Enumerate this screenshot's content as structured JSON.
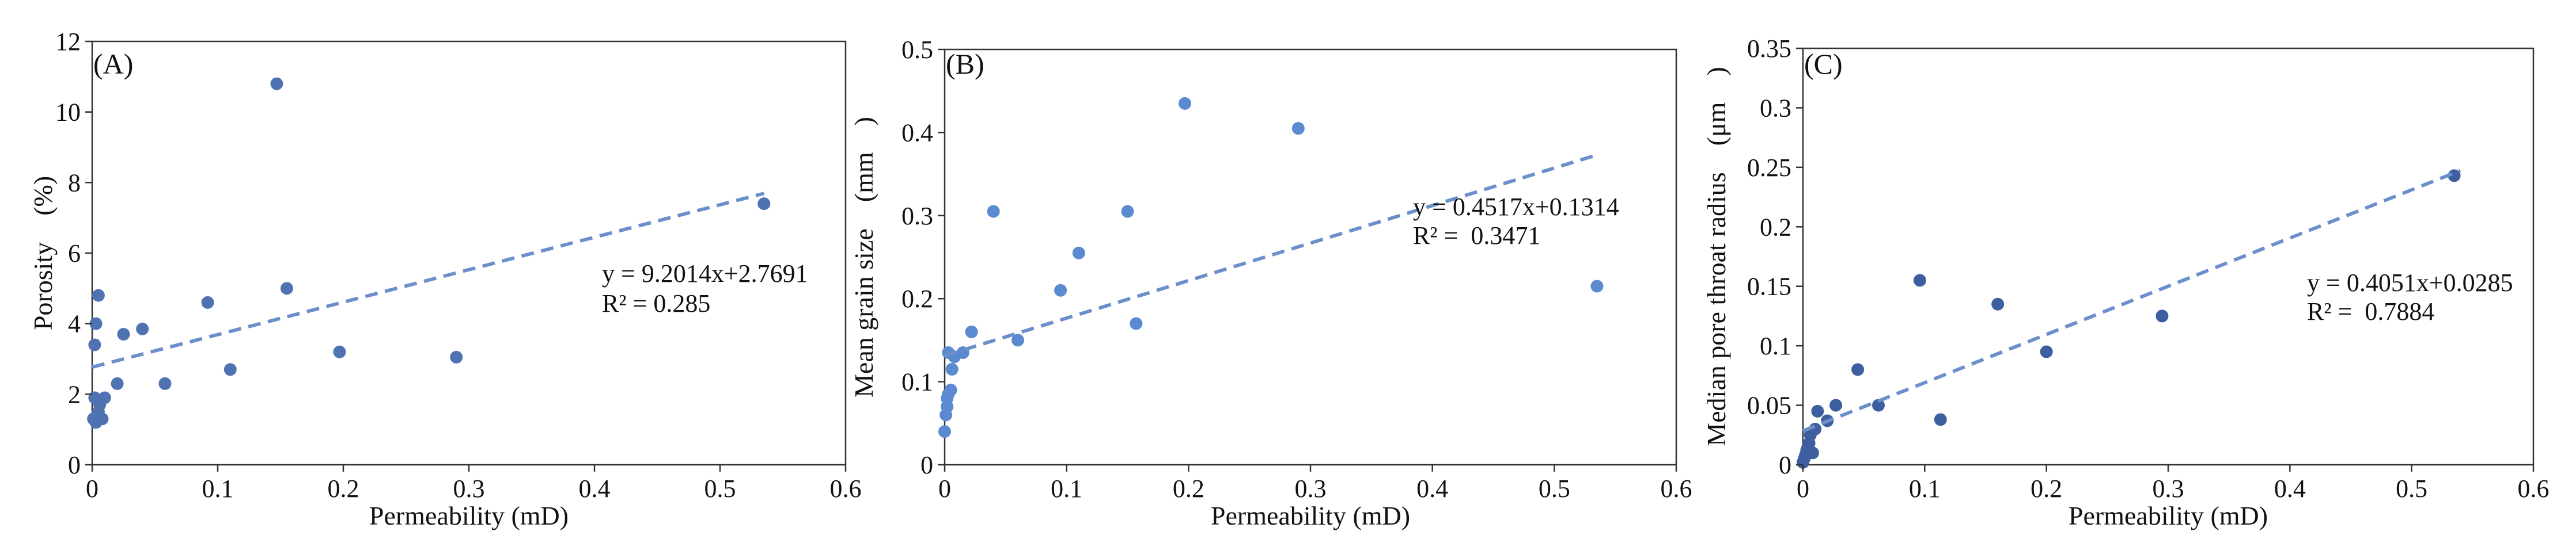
{
  "colors": {
    "point_ab": "#4f72b2",
    "point_b": "#5b8ad0",
    "point_c": "#3e5f9f",
    "trend": "#6b8fcb",
    "axis": "#333333"
  },
  "chart_data": [
    {
      "type": "scatter",
      "panel_label": "(A)",
      "xlabel": "Permeability (mD)",
      "ylabel": "Porosity　(%)",
      "xlim": [
        0,
        0.6
      ],
      "ylim": [
        0,
        12
      ],
      "x_ticks": [
        0,
        0.1,
        0.2,
        0.3,
        0.4,
        0.5,
        0.6
      ],
      "y_ticks": [
        0,
        2,
        4,
        6,
        8,
        10,
        12
      ],
      "x_tick_labels": [
        "0",
        "0.1",
        "0.2",
        "0.3",
        "0.4",
        "0.5",
        "0.6"
      ],
      "y_tick_labels": [
        "0",
        "2",
        "4",
        "6",
        "8",
        "10",
        "12"
      ],
      "points": [
        {
          "x": 0.001,
          "y": 1.3
        },
        {
          "x": 0.002,
          "y": 1.9
        },
        {
          "x": 0.003,
          "y": 1.2
        },
        {
          "x": 0.004,
          "y": 1.4
        },
        {
          "x": 0.005,
          "y": 1.5
        },
        {
          "x": 0.006,
          "y": 1.7
        },
        {
          "x": 0.002,
          "y": 3.4
        },
        {
          "x": 0.003,
          "y": 4.0
        },
        {
          "x": 0.005,
          "y": 4.8
        },
        {
          "x": 0.008,
          "y": 1.3
        },
        {
          "x": 0.01,
          "y": 1.9
        },
        {
          "x": 0.02,
          "y": 2.3
        },
        {
          "x": 0.025,
          "y": 3.7
        },
        {
          "x": 0.04,
          "y": 3.85
        },
        {
          "x": 0.058,
          "y": 2.3
        },
        {
          "x": 0.092,
          "y": 4.6
        },
        {
          "x": 0.11,
          "y": 2.7
        },
        {
          "x": 0.147,
          "y": 10.8
        },
        {
          "x": 0.155,
          "y": 5.0
        },
        {
          "x": 0.197,
          "y": 3.2
        },
        {
          "x": 0.29,
          "y": 3.05
        },
        {
          "x": 0.535,
          "y": 7.4
        }
      ],
      "trendline": {
        "slope": 9.2014,
        "intercept": 2.7691,
        "x_range": [
          0,
          0.535
        ]
      },
      "equation": "y = 9.2014x+2.7691",
      "r2": "R² = 0.285"
    },
    {
      "type": "scatter",
      "panel_label": "(B)",
      "xlabel": "Permeability (mD)",
      "ylabel": "Mean grain size　(mm　)",
      "xlim": [
        0,
        0.6
      ],
      "ylim": [
        0,
        0.5
      ],
      "x_ticks": [
        0,
        0.1,
        0.2,
        0.3,
        0.4,
        0.5,
        0.6
      ],
      "y_ticks": [
        0,
        0.1,
        0.2,
        0.3,
        0.4,
        0.5
      ],
      "x_tick_labels": [
        "0",
        "0.1",
        "0.2",
        "0.3",
        "0.4",
        "0.5",
        "0.6"
      ],
      "y_tick_labels": [
        "0",
        "0.1",
        "0.2",
        "0.3",
        "0.4",
        "0.5"
      ],
      "points": [
        {
          "x": 0.0,
          "y": 0.04
        },
        {
          "x": 0.001,
          "y": 0.06
        },
        {
          "x": 0.002,
          "y": 0.07
        },
        {
          "x": 0.002,
          "y": 0.08
        },
        {
          "x": 0.003,
          "y": 0.085
        },
        {
          "x": 0.005,
          "y": 0.09
        },
        {
          "x": 0.003,
          "y": 0.135
        },
        {
          "x": 0.006,
          "y": 0.115
        },
        {
          "x": 0.008,
          "y": 0.13
        },
        {
          "x": 0.015,
          "y": 0.135
        },
        {
          "x": 0.022,
          "y": 0.16
        },
        {
          "x": 0.04,
          "y": 0.305
        },
        {
          "x": 0.06,
          "y": 0.15
        },
        {
          "x": 0.095,
          "y": 0.21
        },
        {
          "x": 0.11,
          "y": 0.255
        },
        {
          "x": 0.15,
          "y": 0.305
        },
        {
          "x": 0.157,
          "y": 0.17
        },
        {
          "x": 0.197,
          "y": 0.435
        },
        {
          "x": 0.29,
          "y": 0.405
        },
        {
          "x": 0.535,
          "y": 0.215
        }
      ],
      "trendline": {
        "slope": 0.4517,
        "intercept": 0.1314,
        "x_range": [
          0,
          0.535
        ]
      },
      "equation": "y = 0.4517x+0.1314",
      "r2": "R² =  0.3471"
    },
    {
      "type": "scatter",
      "panel_label": "(C)",
      "xlabel": "Permeability (mD)",
      "ylabel": "Median pore throat radius　(μm　)",
      "xlim": [
        0,
        0.6
      ],
      "ylim": [
        0,
        0.35
      ],
      "x_ticks": [
        0,
        0.1,
        0.2,
        0.3,
        0.4,
        0.5,
        0.6
      ],
      "y_ticks": [
        0,
        0.05,
        0.1,
        0.15,
        0.2,
        0.25,
        0.3,
        0.35
      ],
      "x_tick_labels": [
        "0",
        "0.1",
        "0.2",
        "0.3",
        "0.4",
        "0.5",
        "0.6"
      ],
      "y_tick_labels": [
        "0",
        "0.05",
        "0.1",
        "0.15",
        "0.2",
        "0.25",
        "0.3",
        "0.35"
      ],
      "points": [
        {
          "x": 0.0,
          "y": 0.002
        },
        {
          "x": 0.001,
          "y": 0.005
        },
        {
          "x": 0.002,
          "y": 0.008
        },
        {
          "x": 0.003,
          "y": 0.012
        },
        {
          "x": 0.004,
          "y": 0.015
        },
        {
          "x": 0.005,
          "y": 0.018
        },
        {
          "x": 0.006,
          "y": 0.025
        },
        {
          "x": 0.008,
          "y": 0.01
        },
        {
          "x": 0.01,
          "y": 0.03
        },
        {
          "x": 0.012,
          "y": 0.045
        },
        {
          "x": 0.02,
          "y": 0.037
        },
        {
          "x": 0.027,
          "y": 0.05
        },
        {
          "x": 0.045,
          "y": 0.08
        },
        {
          "x": 0.062,
          "y": 0.05
        },
        {
          "x": 0.096,
          "y": 0.155
        },
        {
          "x": 0.113,
          "y": 0.038
        },
        {
          "x": 0.16,
          "y": 0.135
        },
        {
          "x": 0.2,
          "y": 0.095
        },
        {
          "x": 0.295,
          "y": 0.125
        },
        {
          "x": 0.535,
          "y": 0.243
        }
      ],
      "trendline": {
        "slope": 0.4051,
        "intercept": 0.0285,
        "x_range": [
          0,
          0.54
        ]
      },
      "equation": "y = 0.4051x+0.0285",
      "r2": "R² =  0.7884"
    }
  ]
}
